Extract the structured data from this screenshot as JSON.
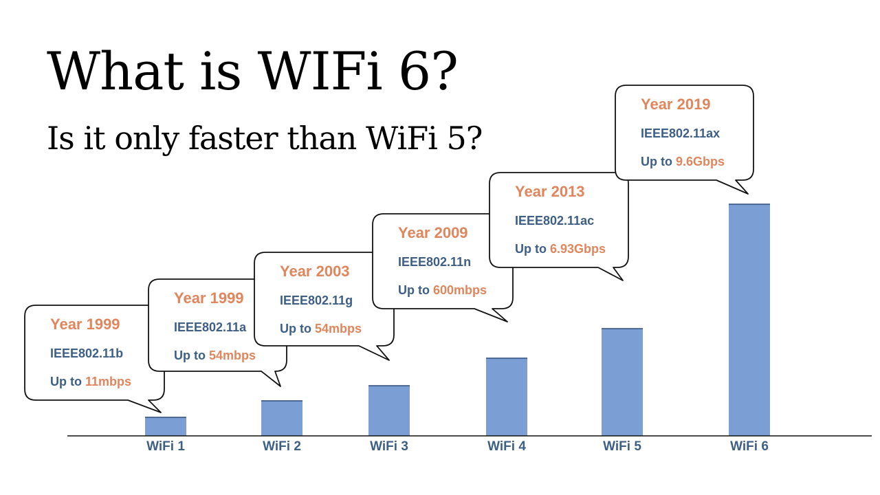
{
  "title": "What is WIFi 6?",
  "subtitle": "Is it only faster than WiFi 5?",
  "colors": {
    "bar": "#7b9fd4",
    "bar_top": "#2f4b78",
    "year": "#e0855c",
    "standard": "#3d5f86",
    "axis": "#111111",
    "bubble_stroke": "#111111"
  },
  "chart_data": {
    "type": "bar",
    "categories": [
      "WiFi 1",
      "WiFi 2",
      "WiFi 3",
      "WiFi 4",
      "WiFi 5",
      "WiFi 6"
    ],
    "values": [
      27,
      51,
      73,
      113,
      156,
      337
    ],
    "ylim": [
      0,
      340
    ],
    "title": "",
    "xlabel": "",
    "ylabel": "",
    "grid": false,
    "annotations": [
      {
        "year": "Year 1999",
        "standard": "IEEE802.11b",
        "speed_prefix": "Up to ",
        "speed": "11mbps"
      },
      {
        "year": "Year 1999",
        "standard": "IEEE802.11a",
        "speed_prefix": "Up to ",
        "speed": "54mbps"
      },
      {
        "year": "Year 2003",
        "standard": "IEEE802.11g",
        "speed_prefix": "Up to ",
        "speed": "54mbps"
      },
      {
        "year": "Year 2009",
        "standard": "IEEE802.11n",
        "speed_prefix": "Up to ",
        "speed": "600mbps"
      },
      {
        "year": "Year 2013",
        "standard": "IEEE802.11ac",
        "speed_prefix": "Up to ",
        "speed": "6.93Gbps"
      },
      {
        "year": "Year 2019",
        "standard": "IEEE802.11ax",
        "speed_prefix": "Up to ",
        "speed": "9.6Gbps"
      }
    ]
  }
}
